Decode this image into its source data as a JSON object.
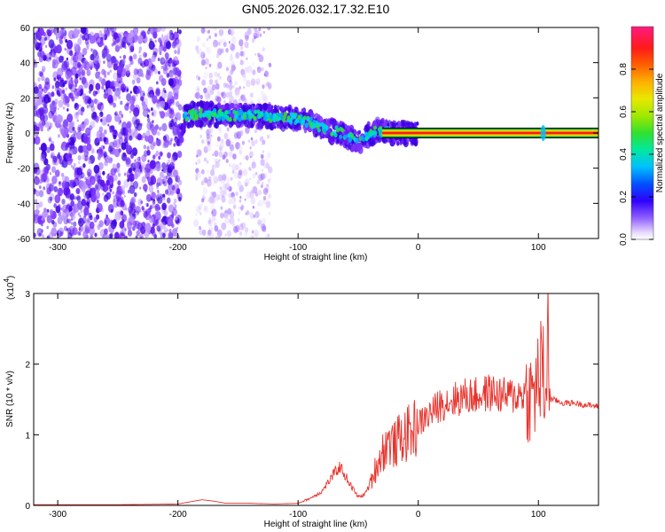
{
  "title": "GN05.2026.032.17.32.E10",
  "colors": {
    "snr_line": "#e8322c",
    "axis": "#000000",
    "track_center": "#ff1a1a",
    "track_band": "#e8e800",
    "track_edge": "#00aa44"
  },
  "chart_data": [
    {
      "type": "heatmap",
      "xlabel": "Height of straight line (km)",
      "ylabel": "Frequency (Hz)",
      "xlim": [
        -320,
        150
      ],
      "ylim": [
        -60,
        60
      ],
      "x_ticks": [
        -300,
        -200,
        -100,
        0,
        100
      ],
      "y_ticks": [
        -60,
        -40,
        -20,
        0,
        20,
        40,
        60
      ],
      "colorbar": {
        "label": "Normalized spectral amplitude",
        "range": [
          0,
          1
        ],
        "ticks": [
          0.0,
          0.2,
          0.4,
          0.6,
          0.8
        ],
        "tick_labels": [
          "0.0",
          "0.2",
          "0.4",
          "0.6",
          "0.8"
        ]
      },
      "track": {
        "x": [
          -195,
          -180,
          -160,
          -140,
          -120,
          -100,
          -90,
          -80,
          -70,
          -60,
          -52,
          -45,
          -40,
          -35,
          -30,
          -20,
          -10,
          0,
          50,
          100,
          105,
          150
        ],
        "frequency_hz": [
          10,
          11,
          10,
          10,
          9,
          8,
          6,
          3,
          1,
          -1,
          -5,
          -3,
          0,
          1,
          1,
          0,
          0,
          0,
          0,
          0,
          0,
          0
        ]
      }
    },
    {
      "type": "line",
      "xlabel": "Height of straight line (km)",
      "ylabel": "SNR (10 * v/v)",
      "y_multiplier": "(x10",
      "y_multiplier_exp": "4",
      "y_multiplier_close": ")",
      "xlim": [
        -320,
        150
      ],
      "ylim": [
        0,
        3
      ],
      "x_ticks": [
        -300,
        -200,
        -100,
        0,
        100
      ],
      "y_ticks": [
        0,
        1,
        2,
        3
      ],
      "series": [
        {
          "x": [
            -320,
            -250,
            -200,
            -180,
            -170,
            -160,
            -140,
            -120,
            -100,
            -90,
            -80,
            -70,
            -65,
            -60,
            -55,
            -50,
            -45,
            -40,
            -35,
            -30,
            -25,
            -20,
            -15,
            -10,
            -5,
            0,
            10,
            20,
            30,
            40,
            50,
            60,
            70,
            80,
            90,
            95,
            100,
            103,
            106,
            108,
            110,
            112,
            120,
            130,
            140,
            150
          ],
          "y": [
            0.01,
            0.01,
            0.02,
            0.08,
            0.06,
            0.03,
            0.03,
            0.02,
            0.03,
            0.1,
            0.2,
            0.45,
            0.55,
            0.4,
            0.25,
            0.12,
            0.15,
            0.3,
            0.55,
            0.75,
            0.9,
            0.85,
            0.95,
            1.0,
            1.05,
            1.15,
            1.3,
            1.45,
            1.5,
            1.55,
            1.55,
            1.6,
            1.55,
            1.55,
            1.6,
            1.5,
            1.8,
            1.9,
            1.6,
            2.3,
            1.5,
            1.5,
            1.45,
            1.45,
            1.42,
            1.4
          ]
        }
      ]
    }
  ]
}
